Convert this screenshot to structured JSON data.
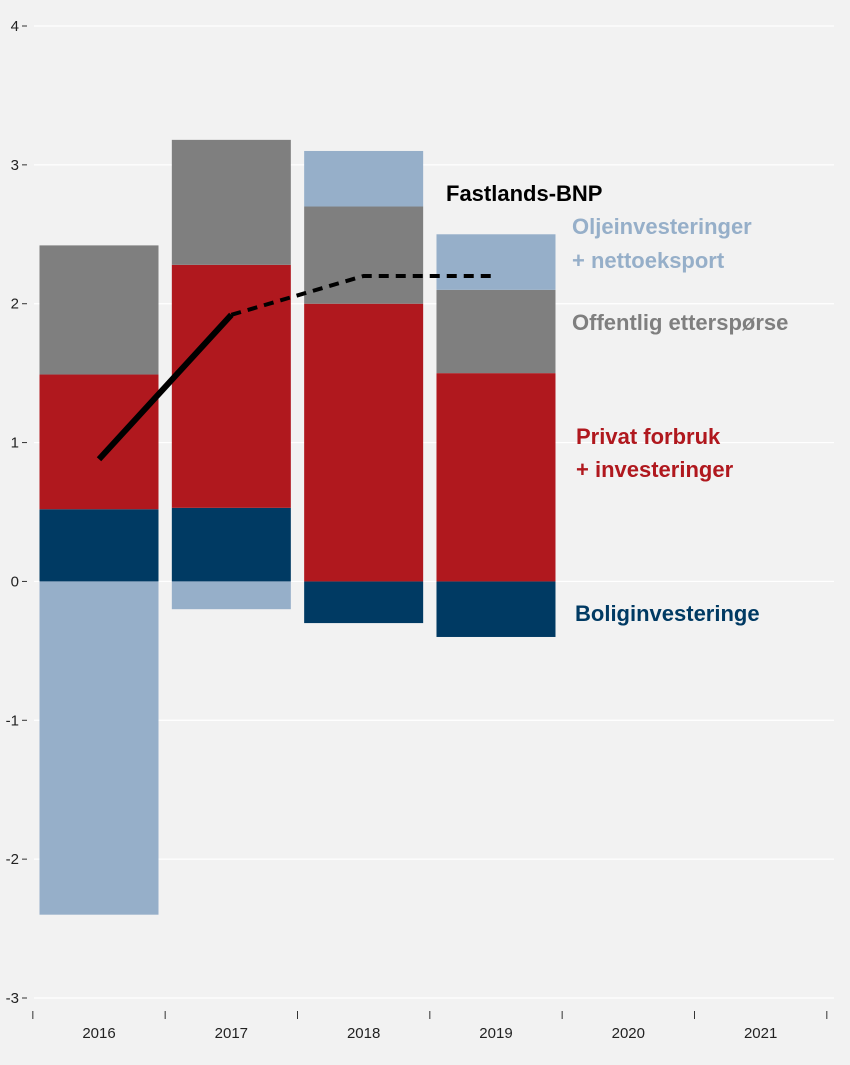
{
  "chart_data": {
    "type": "bar",
    "stacked": true,
    "categories": [
      "2016",
      "2017",
      "2018",
      "2019",
      "2020",
      "2021"
    ],
    "series": [
      {
        "name": "Boliginvesteringe",
        "color": "#003a63",
        "values": [
          0.52,
          0.53,
          -0.3,
          -0.4,
          null,
          null
        ]
      },
      {
        "name": "Privat forbruk\n+ investeringer",
        "color": "#b0181e",
        "values": [
          0.97,
          1.75,
          2.0,
          1.5,
          null,
          null
        ]
      },
      {
        "name": "Offentlig etterspørse",
        "color": "#7f7f7f",
        "values": [
          0.93,
          0.9,
          0.7,
          0.6,
          null,
          null
        ]
      },
      {
        "name": "Oljeinvesteringer\n+ nettoeksport",
        "color": "#96afc9",
        "values": [
          -2.4,
          -0.2,
          0.4,
          0.4,
          null,
          null
        ]
      }
    ],
    "line": {
      "name": "Fastlands-BNP",
      "color": "#000000",
      "solid_points": [
        [
          "2016",
          0.88
        ],
        [
          "2017",
          1.92
        ]
      ],
      "dashed_points": [
        [
          "2017",
          1.92
        ],
        [
          "2018",
          2.2
        ],
        [
          "2019",
          2.2
        ]
      ]
    },
    "y_ticks": [
      "4",
      "3",
      "2",
      "1",
      "0",
      "-1",
      "-2",
      "-3"
    ],
    "ylim": [
      -3,
      4
    ],
    "grid": "horizontal",
    "legend": "direct-labels-right"
  },
  "labels": {
    "line_label": "Fastlands-BNP",
    "olje_line1": "Oljeinvesteringer",
    "olje_line2": "+ nettoeksport",
    "offentlig": "Offentlig etterspørse",
    "privat_line1": "Privat forbruk",
    "privat_line2": "+ investeringer",
    "bolig": "Boliginvesteringe"
  },
  "colors": {
    "background": "#f2f2f2",
    "grid": "#ffffff",
    "bolig": "#003a63",
    "privat": "#b0181e",
    "offentlig": "#7f7f7f",
    "olje": "#96afc9",
    "line": "#000000"
  }
}
